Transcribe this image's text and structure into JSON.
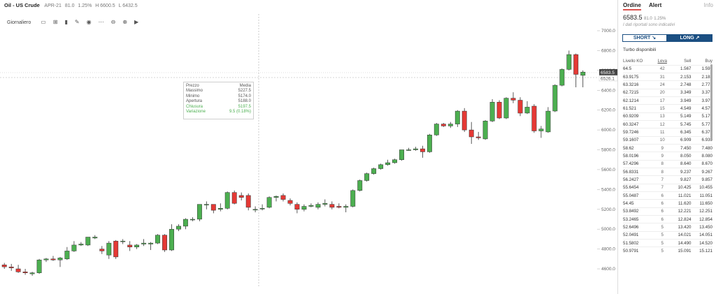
{
  "header": {
    "symbol": "Oil - US Crude",
    "contract": "APR-21",
    "change": "81.0",
    "change_pct": "1.25%",
    "high": "H 6600.5",
    "low": "L 6432.5"
  },
  "toolbar": {
    "timeframe": "Giornaliero",
    "icons": [
      "candle-type-icon",
      "add-indicator-icon",
      "bar-chart-icon",
      "draw-pencil-icon",
      "eye-icon",
      "more-icon",
      "zoom-out-icon",
      "zoom-in-icon",
      "play-icon"
    ]
  },
  "axis": {
    "labels": [
      "7000.0",
      "6800.0",
      "6600.0",
      "6400.0",
      "6200.0",
      "6000.0",
      "5800.0",
      "5600.0",
      "5400.0",
      "5200.0",
      "5000.0",
      "4800.0",
      "4600.0"
    ],
    "current_price": "6583.5",
    "crosshair_price": "6526.1"
  },
  "tooltip": {
    "header_label": "Prezzo",
    "header_value": "Media",
    "rows": [
      {
        "label": "Massimo",
        "value": "5227.5"
      },
      {
        "label": "Minimo",
        "value": "5174.0"
      },
      {
        "label": "Apertura",
        "value": "5188.0"
      },
      {
        "label": "Chiusura",
        "value": "5197.5"
      },
      {
        "label": "Variazione",
        "value": "9.5 (0.18%)"
      }
    ]
  },
  "chart_data": {
    "type": "candlestick",
    "ylim": [
      4500,
      7050
    ],
    "up_color": "#4caf50",
    "down_color": "#e53935",
    "candles": [
      {
        "o": 4640,
        "h": 4660,
        "l": 4600,
        "c": 4620
      },
      {
        "o": 4620,
        "h": 4650,
        "l": 4580,
        "c": 4610
      },
      {
        "o": 4600,
        "h": 4640,
        "l": 4560,
        "c": 4570
      },
      {
        "o": 4570,
        "h": 4600,
        "l": 4540,
        "c": 4560
      },
      {
        "o": 4550,
        "h": 4570,
        "l": 4530,
        "c": 4560
      },
      {
        "o": 4560,
        "h": 4700,
        "l": 4550,
        "c": 4690
      },
      {
        "o": 4690,
        "h": 4710,
        "l": 4670,
        "c": 4700
      },
      {
        "o": 4700,
        "h": 4730,
        "l": 4680,
        "c": 4690
      },
      {
        "o": 4690,
        "h": 4720,
        "l": 4620,
        "c": 4710
      },
      {
        "o": 4700,
        "h": 4820,
        "l": 4690,
        "c": 4780
      },
      {
        "o": 4780,
        "h": 4880,
        "l": 4770,
        "c": 4840
      },
      {
        "o": 4840,
        "h": 4870,
        "l": 4830,
        "c": 4850
      },
      {
        "o": 4840,
        "h": 4920,
        "l": 4830,
        "c": 4920
      },
      {
        "o": 4910,
        "h": 4940,
        "l": 4900,
        "c": 4920
      },
      {
        "o": 4800,
        "h": 4830,
        "l": 4750,
        "c": 4780
      },
      {
        "o": 4740,
        "h": 4880,
        "l": 4700,
        "c": 4860
      },
      {
        "o": 4880,
        "h": 4890,
        "l": 4700,
        "c": 4720
      },
      {
        "o": 4880,
        "h": 4900,
        "l": 4850,
        "c": 4880
      },
      {
        "o": 4840,
        "h": 4880,
        "l": 4780,
        "c": 4820
      },
      {
        "o": 4820,
        "h": 4850,
        "l": 4800,
        "c": 4840
      },
      {
        "o": 4850,
        "h": 4900,
        "l": 4830,
        "c": 4860
      },
      {
        "o": 4850,
        "h": 4870,
        "l": 4790,
        "c": 4860
      },
      {
        "o": 4860,
        "h": 4950,
        "l": 4850,
        "c": 4940
      },
      {
        "o": 4940,
        "h": 4950,
        "l": 4770,
        "c": 4790
      },
      {
        "o": 4790,
        "h": 5050,
        "l": 4780,
        "c": 5000
      },
      {
        "o": 5000,
        "h": 5050,
        "l": 4980,
        "c": 5030
      },
      {
        "o": 5030,
        "h": 5110,
        "l": 5000,
        "c": 5100
      },
      {
        "o": 5100,
        "h": 5120,
        "l": 5080,
        "c": 5100
      },
      {
        "o": 5100,
        "h": 5250,
        "l": 5080,
        "c": 5250
      },
      {
        "o": 5250,
        "h": 5280,
        "l": 5200,
        "c": 5250
      },
      {
        "o": 5250,
        "h": 5240,
        "l": 5160,
        "c": 5190
      },
      {
        "o": 5200,
        "h": 5260,
        "l": 5180,
        "c": 5210
      },
      {
        "o": 5210,
        "h": 5380,
        "l": 5200,
        "c": 5370
      },
      {
        "o": 5370,
        "h": 5390,
        "l": 5250,
        "c": 5260
      },
      {
        "o": 5340,
        "h": 5370,
        "l": 5290,
        "c": 5320
      },
      {
        "o": 5340,
        "h": 5360,
        "l": 5190,
        "c": 5220
      },
      {
        "o": 5200,
        "h": 5230,
        "l": 5170,
        "c": 5200
      },
      {
        "o": 5210,
        "h": 5250,
        "l": 5190,
        "c": 5210
      },
      {
        "o": 5220,
        "h": 5330,
        "l": 5210,
        "c": 5320
      },
      {
        "o": 5320,
        "h": 5340,
        "l": 5280,
        "c": 5330
      },
      {
        "o": 5340,
        "h": 5360,
        "l": 5280,
        "c": 5300
      },
      {
        "o": 5290,
        "h": 5310,
        "l": 5240,
        "c": 5260
      },
      {
        "o": 5250,
        "h": 5270,
        "l": 5160,
        "c": 5200
      },
      {
        "o": 5200,
        "h": 5250,
        "l": 5180,
        "c": 5230
      },
      {
        "o": 5230,
        "h": 5260,
        "l": 5220,
        "c": 5240
      },
      {
        "o": 5220,
        "h": 5270,
        "l": 5200,
        "c": 5250
      },
      {
        "o": 5250,
        "h": 5300,
        "l": 5230,
        "c": 5260
      },
      {
        "o": 5250,
        "h": 5280,
        "l": 5200,
        "c": 5220
      },
      {
        "o": 5230,
        "h": 5260,
        "l": 5210,
        "c": 5220
      },
      {
        "o": 5220,
        "h": 5250,
        "l": 5170,
        "c": 5230
      },
      {
        "o": 5230,
        "h": 5400,
        "l": 5220,
        "c": 5390
      },
      {
        "o": 5390,
        "h": 5500,
        "l": 5380,
        "c": 5490
      },
      {
        "o": 5490,
        "h": 5570,
        "l": 5480,
        "c": 5560
      },
      {
        "o": 5560,
        "h": 5620,
        "l": 5550,
        "c": 5610
      },
      {
        "o": 5610,
        "h": 5660,
        "l": 5600,
        "c": 5650
      },
      {
        "o": 5650,
        "h": 5700,
        "l": 5640,
        "c": 5670
      },
      {
        "o": 5670,
        "h": 5710,
        "l": 5660,
        "c": 5700
      },
      {
        "o": 5700,
        "h": 5800,
        "l": 5690,
        "c": 5800
      },
      {
        "o": 5800,
        "h": 5820,
        "l": 5790,
        "c": 5800
      },
      {
        "o": 5800,
        "h": 5830,
        "l": 5790,
        "c": 5810
      },
      {
        "o": 5810,
        "h": 5840,
        "l": 5720,
        "c": 5780
      },
      {
        "o": 5780,
        "h": 5960,
        "l": 5770,
        "c": 5950
      },
      {
        "o": 5950,
        "h": 6070,
        "l": 5940,
        "c": 6060
      },
      {
        "o": 6060,
        "h": 6070,
        "l": 6030,
        "c": 6040
      },
      {
        "o": 6040,
        "h": 6080,
        "l": 6020,
        "c": 6060
      },
      {
        "o": 6060,
        "h": 6200,
        "l": 6030,
        "c": 6190
      },
      {
        "o": 6190,
        "h": 6220,
        "l": 5980,
        "c": 6000
      },
      {
        "o": 6000,
        "h": 6080,
        "l": 5860,
        "c": 5930
      },
      {
        "o": 5930,
        "h": 5980,
        "l": 5900,
        "c": 5920
      },
      {
        "o": 5910,
        "h": 6100,
        "l": 5900,
        "c": 6090
      },
      {
        "o": 6090,
        "h": 6310,
        "l": 6080,
        "c": 6280
      },
      {
        "o": 6280,
        "h": 6300,
        "l": 6110,
        "c": 6120
      },
      {
        "o": 6120,
        "h": 6330,
        "l": 6110,
        "c": 6320
      },
      {
        "o": 6320,
        "h": 6380,
        "l": 6270,
        "c": 6300
      },
      {
        "o": 6300,
        "h": 6330,
        "l": 6140,
        "c": 6170
      },
      {
        "o": 6170,
        "h": 6290,
        "l": 6160,
        "c": 6230
      },
      {
        "o": 6240,
        "h": 6260,
        "l": 5970,
        "c": 5990
      },
      {
        "o": 5990,
        "h": 6040,
        "l": 5920,
        "c": 6010
      },
      {
        "o": 5980,
        "h": 6230,
        "l": 5970,
        "c": 6190
      },
      {
        "o": 6190,
        "h": 6460,
        "l": 6180,
        "c": 6450
      },
      {
        "o": 6450,
        "h": 6620,
        "l": 6440,
        "c": 6610
      },
      {
        "o": 6610,
        "h": 6800,
        "l": 6600,
        "c": 6760
      },
      {
        "o": 6760,
        "h": 6770,
        "l": 6430,
        "c": 6560
      },
      {
        "o": 6550,
        "h": 6600,
        "l": 6430,
        "c": 6583
      }
    ]
  },
  "panel": {
    "tabs": [
      "Ordine",
      "Alert",
      "Info"
    ],
    "price": "6583.5",
    "change": "81.0",
    "change_pct": "1.25%",
    "note": "I dati riportati sono indicativi",
    "short_label": "SHORT",
    "long_label": "LONG",
    "turbo_title": "Turbo disponibili",
    "columns": [
      "Livello KO",
      "Leva",
      "Sell",
      "Buy"
    ],
    "rows": [
      [
        "64.5",
        "42",
        "1.567",
        "1.597"
      ],
      [
        "63.9175",
        "31",
        "2.153",
        "2.183"
      ],
      [
        "63.3216",
        "24",
        "2.748",
        "2.778"
      ],
      [
        "62.7215",
        "20",
        "3.349",
        "3.379"
      ],
      [
        "62.1214",
        "17",
        "3.949",
        "3.979"
      ],
      [
        "61.521",
        "15",
        "4.549",
        "4.579"
      ],
      [
        "60.9209",
        "13",
        "5.149",
        "5.179"
      ],
      [
        "60.3247",
        "12",
        "5.745",
        "5.775"
      ],
      [
        "59.7246",
        "11",
        "6.345",
        "6.375"
      ],
      [
        "59.1607",
        "10",
        "6.909",
        "6.939"
      ],
      [
        "58.62",
        "9",
        "7.450",
        "7.480"
      ],
      [
        "58.0196",
        "9",
        "8.050",
        "8.080"
      ],
      [
        "57.4296",
        "8",
        "8.640",
        "8.670"
      ],
      [
        "56.8331",
        "8",
        "9.237",
        "9.267"
      ],
      [
        "56.2427",
        "7",
        "9.827",
        "9.857"
      ],
      [
        "55.6454",
        "7",
        "10.425",
        "10.455"
      ],
      [
        "55.0487",
        "6",
        "11.021",
        "11.051"
      ],
      [
        "54.45",
        "6",
        "11.620",
        "11.650"
      ],
      [
        "53.8492",
        "6",
        "12.221",
        "12.251"
      ],
      [
        "53.2465",
        "6",
        "12.824",
        "12.854"
      ],
      [
        "52.6496",
        "5",
        "13.420",
        "13.450"
      ],
      [
        "52.0491",
        "5",
        "14.021",
        "14.051"
      ],
      [
        "51.5802",
        "5",
        "14.490",
        "14.520"
      ],
      [
        "50.9791",
        "5",
        "15.091",
        "15.121"
      ]
    ]
  }
}
